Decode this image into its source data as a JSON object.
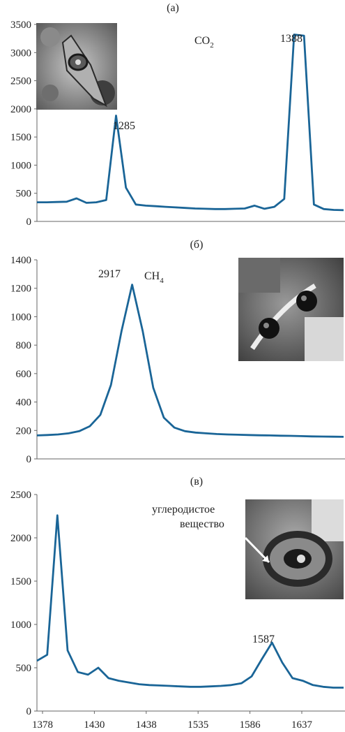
{
  "chart_data": [
    {
      "type": "line",
      "panel_label": "(а)",
      "compound": {
        "main": "CO",
        "sub": "2"
      },
      "yticks": [
        "0",
        "500",
        "1000",
        "1500",
        "2000",
        "2500",
        "3000",
        "3500"
      ],
      "ylim": [
        0,
        3500
      ],
      "xlabel": "",
      "ylabel": "",
      "peak_labels": [
        "1285",
        "1388"
      ],
      "series": [
        {
          "values": [
            340,
            340,
            345,
            350,
            410,
            330,
            340,
            380,
            1880,
            600,
            300,
            280,
            270,
            260,
            250,
            240,
            230,
            225,
            220,
            220,
            225,
            230,
            280,
            225,
            260,
            400,
            3320,
            3300,
            300,
            220,
            205,
            200
          ]
        }
      ],
      "line_color": "#1a6597",
      "inset": "inclusion-photo-co2"
    },
    {
      "type": "line",
      "panel_label": "(б)",
      "compound": {
        "main": "CH",
        "sub": "4"
      },
      "yticks": [
        "0",
        "200",
        "400",
        "600",
        "800",
        "1000",
        "1200",
        "1400"
      ],
      "ylim": [
        0,
        1400
      ],
      "xlabel": "",
      "ylabel": "",
      "peak_labels": [
        "2917"
      ],
      "series": [
        {
          "values": [
            165,
            168,
            172,
            180,
            195,
            230,
            310,
            520,
            900,
            1225,
            900,
            500,
            290,
            220,
            195,
            185,
            180,
            175,
            172,
            170,
            168,
            166,
            165,
            163,
            162,
            160,
            158,
            157,
            156,
            155
          ]
        }
      ],
      "line_color": "#1a6597",
      "inset": "inclusion-photo-ch4"
    },
    {
      "type": "line",
      "panel_label": "(в)",
      "annotation": [
        "углеродистое",
        "вещество"
      ],
      "xticks": [
        "1378",
        "1430",
        "1438",
        "1535",
        "1586",
        "1637"
      ],
      "yticks": [
        "0",
        "500",
        "1000",
        "1500",
        "2000",
        "2500"
      ],
      "ylim": [
        0,
        2500
      ],
      "xlabel": "",
      "ylabel": "",
      "peak_labels": [
        "1587"
      ],
      "series": [
        {
          "values": [
            580,
            650,
            2260,
            700,
            450,
            420,
            500,
            380,
            350,
            330,
            310,
            300,
            295,
            290,
            285,
            280,
            280,
            285,
            290,
            300,
            320,
            400,
            600,
            790,
            560,
            380,
            350,
            300,
            280,
            270,
            270
          ]
        }
      ],
      "line_color": "#1a6597",
      "inset": "inclusion-photo-carbon"
    }
  ]
}
